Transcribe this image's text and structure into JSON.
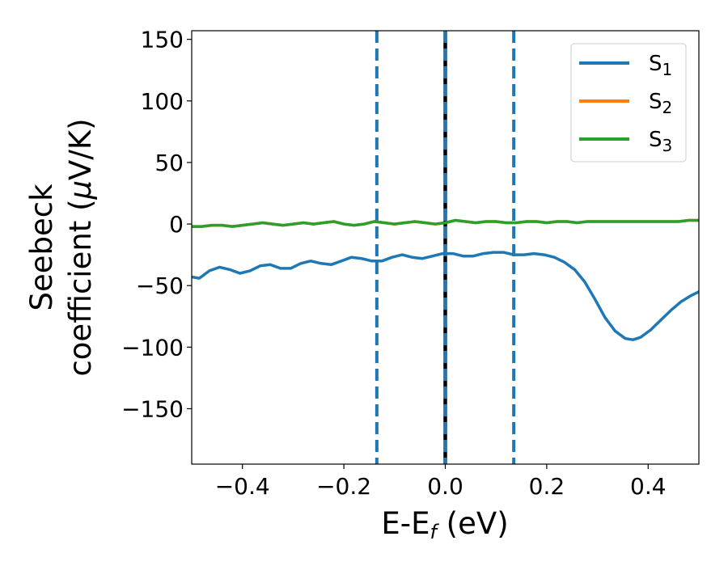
{
  "chart_data": {
    "type": "line",
    "xlabel": {
      "main": "E-E",
      "sub": "f",
      "unit": " (eV)"
    },
    "ylabel": {
      "line1": "Seebeck",
      "line2_prefix": "coefficient  (",
      "line2_mu": "μ",
      "line2_suffix": "V/K)"
    },
    "xlim": [
      -0.5,
      0.5
    ],
    "ylim": [
      -195,
      157
    ],
    "x_ticks": [
      -0.4,
      -0.2,
      0.0,
      0.2,
      0.4
    ],
    "x_tick_labels": [
      "−0.4",
      "−0.2",
      "0.0",
      "0.2",
      "0.4"
    ],
    "y_ticks": [
      150,
      100,
      50,
      0,
      -50,
      -100,
      -150
    ],
    "y_tick_labels": [
      "150",
      "100",
      "50",
      "0",
      "−50",
      "−100",
      "−150"
    ],
    "vlines": [
      {
        "x": -0.135,
        "color": "#1f77b4",
        "style": "dashed"
      },
      {
        "x": 0.0,
        "color": "#000000",
        "style": "solid"
      },
      {
        "x": 0.0,
        "color": "#1f77b4",
        "style": "dashed"
      },
      {
        "x": 0.135,
        "color": "#1f77b4",
        "style": "dashed"
      }
    ],
    "legend": {
      "placement": "top-right"
    },
    "series": [
      {
        "name": "S",
        "sub": "1",
        "color": "#1f77b4",
        "points": [
          [
            -0.5,
            -43
          ],
          [
            -0.485,
            -44
          ],
          [
            -0.465,
            -38
          ],
          [
            -0.445,
            -35
          ],
          [
            -0.425,
            -37
          ],
          [
            -0.405,
            -40
          ],
          [
            -0.385,
            -38
          ],
          [
            -0.365,
            -34
          ],
          [
            -0.345,
            -33
          ],
          [
            -0.325,
            -36
          ],
          [
            -0.305,
            -36
          ],
          [
            -0.285,
            -32
          ],
          [
            -0.265,
            -30
          ],
          [
            -0.245,
            -32
          ],
          [
            -0.225,
            -33
          ],
          [
            -0.205,
            -30
          ],
          [
            -0.185,
            -27
          ],
          [
            -0.165,
            -28
          ],
          [
            -0.145,
            -30
          ],
          [
            -0.125,
            -30
          ],
          [
            -0.105,
            -27
          ],
          [
            -0.085,
            -25
          ],
          [
            -0.065,
            -27
          ],
          [
            -0.045,
            -28
          ],
          [
            -0.025,
            -26
          ],
          [
            -0.005,
            -24
          ],
          [
            0.015,
            -24
          ],
          [
            0.035,
            -26
          ],
          [
            0.055,
            -26
          ],
          [
            0.075,
            -24
          ],
          [
            0.095,
            -23
          ],
          [
            0.115,
            -23
          ],
          [
            0.135,
            -25
          ],
          [
            0.155,
            -25
          ],
          [
            0.175,
            -24
          ],
          [
            0.195,
            -25
          ],
          [
            0.215,
            -27
          ],
          [
            0.235,
            -31
          ],
          [
            0.255,
            -37
          ],
          [
            0.275,
            -47
          ],
          [
            0.295,
            -61
          ],
          [
            0.315,
            -76
          ],
          [
            0.335,
            -87
          ],
          [
            0.355,
            -93
          ],
          [
            0.37,
            -94
          ],
          [
            0.385,
            -92
          ],
          [
            0.405,
            -86
          ],
          [
            0.425,
            -78
          ],
          [
            0.445,
            -70
          ],
          [
            0.465,
            -63
          ],
          [
            0.485,
            -58
          ],
          [
            0.5,
            -55
          ]
        ]
      },
      {
        "name": "S",
        "sub": "2",
        "color": "#ff7f0e",
        "points": [
          [
            -0.5,
            -2
          ],
          [
            -0.48,
            -2
          ],
          [
            -0.46,
            -1
          ],
          [
            -0.44,
            -1
          ],
          [
            -0.42,
            -2
          ],
          [
            -0.4,
            -1
          ],
          [
            -0.38,
            0
          ],
          [
            -0.36,
            1
          ],
          [
            -0.34,
            0
          ],
          [
            -0.32,
            -1
          ],
          [
            -0.3,
            0
          ],
          [
            -0.28,
            1
          ],
          [
            -0.26,
            0
          ],
          [
            -0.24,
            1
          ],
          [
            -0.22,
            2
          ],
          [
            -0.2,
            0
          ],
          [
            -0.18,
            -1
          ],
          [
            -0.16,
            0
          ],
          [
            -0.14,
            2
          ],
          [
            -0.12,
            1
          ],
          [
            -0.1,
            0
          ],
          [
            -0.08,
            1
          ],
          [
            -0.06,
            2
          ],
          [
            -0.04,
            1
          ],
          [
            -0.02,
            0
          ],
          [
            0.0,
            1
          ],
          [
            0.02,
            3
          ],
          [
            0.04,
            2
          ],
          [
            0.06,
            1
          ],
          [
            0.08,
            2
          ],
          [
            0.1,
            2
          ],
          [
            0.12,
            1
          ],
          [
            0.14,
            1
          ],
          [
            0.16,
            2
          ],
          [
            0.18,
            2
          ],
          [
            0.2,
            1
          ],
          [
            0.22,
            2
          ],
          [
            0.24,
            2
          ],
          [
            0.26,
            1
          ],
          [
            0.28,
            2
          ],
          [
            0.3,
            2
          ],
          [
            0.32,
            2
          ],
          [
            0.34,
            2
          ],
          [
            0.36,
            2
          ],
          [
            0.38,
            2
          ],
          [
            0.4,
            2
          ],
          [
            0.42,
            2
          ],
          [
            0.44,
            2
          ],
          [
            0.46,
            2
          ],
          [
            0.48,
            3
          ],
          [
            0.5,
            3
          ]
        ]
      },
      {
        "name": "S",
        "sub": "3",
        "color": "#2ca02c",
        "points": [
          [
            -0.5,
            -2
          ],
          [
            -0.48,
            -2
          ],
          [
            -0.46,
            -1
          ],
          [
            -0.44,
            -1
          ],
          [
            -0.42,
            -2
          ],
          [
            -0.4,
            -1
          ],
          [
            -0.38,
            0
          ],
          [
            -0.36,
            1
          ],
          [
            -0.34,
            0
          ],
          [
            -0.32,
            -1
          ],
          [
            -0.3,
            0
          ],
          [
            -0.28,
            1
          ],
          [
            -0.26,
            0
          ],
          [
            -0.24,
            1
          ],
          [
            -0.22,
            2
          ],
          [
            -0.2,
            0
          ],
          [
            -0.18,
            -1
          ],
          [
            -0.16,
            0
          ],
          [
            -0.14,
            2
          ],
          [
            -0.12,
            1
          ],
          [
            -0.1,
            0
          ],
          [
            -0.08,
            1
          ],
          [
            -0.06,
            2
          ],
          [
            -0.04,
            1
          ],
          [
            -0.02,
            0
          ],
          [
            0.0,
            1
          ],
          [
            0.02,
            3
          ],
          [
            0.04,
            2
          ],
          [
            0.06,
            1
          ],
          [
            0.08,
            2
          ],
          [
            0.1,
            2
          ],
          [
            0.12,
            1
          ],
          [
            0.14,
            1
          ],
          [
            0.16,
            2
          ],
          [
            0.18,
            2
          ],
          [
            0.2,
            1
          ],
          [
            0.22,
            2
          ],
          [
            0.24,
            2
          ],
          [
            0.26,
            1
          ],
          [
            0.28,
            2
          ],
          [
            0.3,
            2
          ],
          [
            0.32,
            2
          ],
          [
            0.34,
            2
          ],
          [
            0.36,
            2
          ],
          [
            0.38,
            2
          ],
          [
            0.4,
            2
          ],
          [
            0.42,
            2
          ],
          [
            0.44,
            2
          ],
          [
            0.46,
            2
          ],
          [
            0.48,
            3
          ],
          [
            0.5,
            3
          ]
        ]
      }
    ]
  }
}
